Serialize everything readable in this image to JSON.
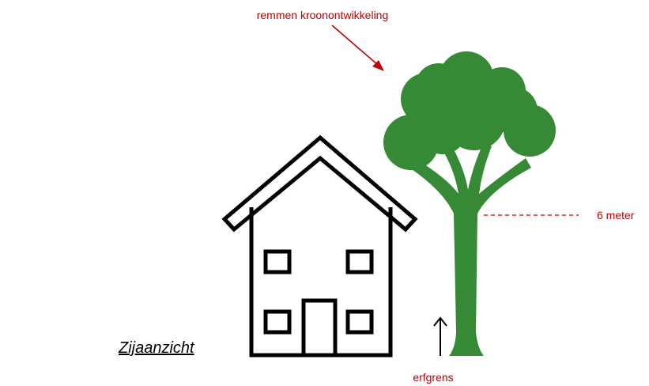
{
  "annotations": {
    "crown": "remmen kroonontwikkeling",
    "height": "6 meter",
    "boundary": "erfgrens"
  },
  "caption": "Zijaanzicht"
}
